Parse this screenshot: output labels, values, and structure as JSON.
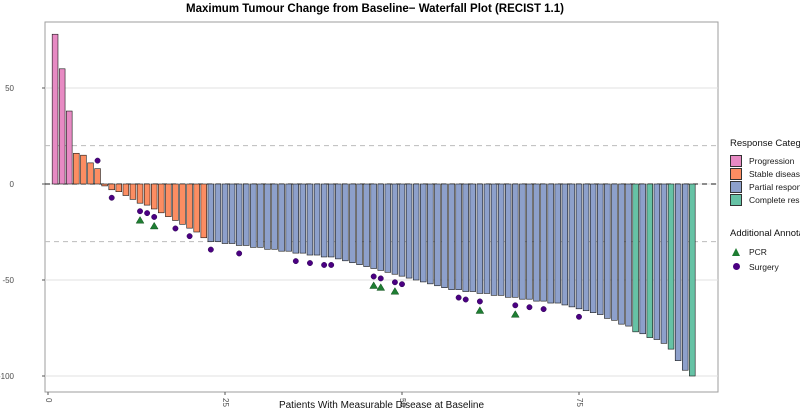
{
  "title": "Maximum Tumour Change from Baseline− Waterfall Plot (RECIST 1.1)",
  "x_axis": {
    "label": "Patients With Measurable Disease at Baseline"
  },
  "legend": {
    "response_title": "Response Category",
    "annotations_title": "Additional Annotations",
    "items": [
      {
        "key": "PD",
        "label": "Progression",
        "color": "#E78AC3"
      },
      {
        "key": "SD",
        "label": "Stable disease",
        "color": "#FC8D62"
      },
      {
        "key": "PR",
        "label": "Partial response",
        "color": "#8DA0CB"
      },
      {
        "key": "CR",
        "label": "Complete response",
        "color": "#66C2A5"
      }
    ],
    "annotation_items": [
      {
        "key": "pcr",
        "label": "PCR",
        "marker": "triangle",
        "color": "#1E7D32"
      },
      {
        "key": "surgery",
        "label": "Surgery",
        "marker": "dot",
        "color": "#4B0082"
      }
    ]
  },
  "chart_data": {
    "type": "bar",
    "title": "Maximum Tumour Change from Baseline− Waterfall Plot (RECIST 1.1)",
    "xlabel": "Patients With Measurable Disease at Baseline",
    "ylabel": "",
    "ylim": [
      -102,
      84
    ],
    "xlim": [
      0,
      94
    ],
    "xticks": [
      0,
      25,
      50,
      75
    ],
    "yticks": [
      50,
      0,
      -50,
      -100
    ],
    "grid": "horizontal-major",
    "legend_position": "right",
    "reference_lines": [
      {
        "y": 0,
        "style": "dashed",
        "color": "#1a1a1a"
      },
      {
        "y": 20,
        "style": "dashed",
        "color": "#bcbcbc"
      },
      {
        "y": -30,
        "style": "dashed",
        "color": "#bcbcbc"
      }
    ],
    "category_colors": {
      "PD": "#E78AC3",
      "SD": "#FC8D62",
      "PR": "#8DA0CB",
      "CR": "#66C2A5"
    },
    "marker_colors": {
      "pcr": "#1E7D32",
      "surgery": "#4B0082"
    },
    "patients": [
      {
        "v": 78,
        "c": "PD"
      },
      {
        "v": 60,
        "c": "PD"
      },
      {
        "v": 38,
        "c": "PD"
      },
      {
        "v": 16,
        "c": "SD"
      },
      {
        "v": 15,
        "c": "SD"
      },
      {
        "v": 11,
        "c": "SD"
      },
      {
        "v": 8,
        "c": "SD",
        "a": "s"
      },
      {
        "v": -1,
        "c": "SD"
      },
      {
        "v": -3,
        "c": "SD",
        "a": "s"
      },
      {
        "v": -4,
        "c": "SD"
      },
      {
        "v": -6,
        "c": "SD"
      },
      {
        "v": -8,
        "c": "SD"
      },
      {
        "v": -10,
        "c": "SD",
        "a": "sp"
      },
      {
        "v": -11,
        "c": "SD",
        "a": "s"
      },
      {
        "v": -13,
        "c": "SD",
        "a": "sp"
      },
      {
        "v": -15,
        "c": "SD"
      },
      {
        "v": -17,
        "c": "SD"
      },
      {
        "v": -19,
        "c": "SD",
        "a": "s"
      },
      {
        "v": -21,
        "c": "SD"
      },
      {
        "v": -23,
        "c": "SD",
        "a": "s"
      },
      {
        "v": -25,
        "c": "SD"
      },
      {
        "v": -28,
        "c": "SD"
      },
      {
        "v": -30,
        "c": "PR",
        "a": "s"
      },
      {
        "v": -30,
        "c": "PR"
      },
      {
        "v": -31,
        "c": "PR"
      },
      {
        "v": -31,
        "c": "PR"
      },
      {
        "v": -32,
        "c": "PR",
        "a": "s"
      },
      {
        "v": -32,
        "c": "PR"
      },
      {
        "v": -33,
        "c": "PR"
      },
      {
        "v": -33,
        "c": "PR"
      },
      {
        "v": -34,
        "c": "PR"
      },
      {
        "v": -34,
        "c": "PR"
      },
      {
        "v": -35,
        "c": "PR"
      },
      {
        "v": -35,
        "c": "PR"
      },
      {
        "v": -36,
        "c": "PR",
        "a": "s"
      },
      {
        "v": -36,
        "c": "PR"
      },
      {
        "v": -37,
        "c": "PR",
        "a": "s"
      },
      {
        "v": -37,
        "c": "PR"
      },
      {
        "v": -38,
        "c": "PR",
        "a": "s"
      },
      {
        "v": -38,
        "c": "PR",
        "a": "s"
      },
      {
        "v": -39,
        "c": "PR"
      },
      {
        "v": -40,
        "c": "PR"
      },
      {
        "v": -41,
        "c": "PR"
      },
      {
        "v": -42,
        "c": "PR"
      },
      {
        "v": -43,
        "c": "PR"
      },
      {
        "v": -44,
        "c": "PR",
        "a": "sp"
      },
      {
        "v": -45,
        "c": "PR",
        "a": "sp"
      },
      {
        "v": -46,
        "c": "PR"
      },
      {
        "v": -47,
        "c": "PR",
        "a": "sp"
      },
      {
        "v": -48,
        "c": "PR",
        "a": "s"
      },
      {
        "v": -49,
        "c": "PR"
      },
      {
        "v": -50,
        "c": "PR"
      },
      {
        "v": -51,
        "c": "PR"
      },
      {
        "v": -52,
        "c": "PR"
      },
      {
        "v": -53,
        "c": "PR"
      },
      {
        "v": -54,
        "c": "PR"
      },
      {
        "v": -55,
        "c": "PR"
      },
      {
        "v": -55,
        "c": "PR",
        "a": "s"
      },
      {
        "v": -56,
        "c": "PR",
        "a": "s"
      },
      {
        "v": -56,
        "c": "PR"
      },
      {
        "v": -57,
        "c": "PR",
        "a": "sp"
      },
      {
        "v": -57,
        "c": "PR"
      },
      {
        "v": -58,
        "c": "PR"
      },
      {
        "v": -58,
        "c": "PR"
      },
      {
        "v": -59,
        "c": "PR"
      },
      {
        "v": -59,
        "c": "PR",
        "a": "sp"
      },
      {
        "v": -60,
        "c": "PR"
      },
      {
        "v": -60,
        "c": "PR",
        "a": "s"
      },
      {
        "v": -61,
        "c": "PR"
      },
      {
        "v": -61,
        "c": "PR",
        "a": "s"
      },
      {
        "v": -62,
        "c": "PR"
      },
      {
        "v": -62,
        "c": "PR"
      },
      {
        "v": -63,
        "c": "PR"
      },
      {
        "v": -64,
        "c": "PR"
      },
      {
        "v": -65,
        "c": "PR",
        "a": "s"
      },
      {
        "v": -66,
        "c": "PR"
      },
      {
        "v": -67,
        "c": "PR"
      },
      {
        "v": -68,
        "c": "PR"
      },
      {
        "v": -70,
        "c": "PR"
      },
      {
        "v": -71,
        "c": "PR"
      },
      {
        "v": -73,
        "c": "PR"
      },
      {
        "v": -74,
        "c": "PR"
      },
      {
        "v": -77,
        "c": "CR"
      },
      {
        "v": -78,
        "c": "PR"
      },
      {
        "v": -80,
        "c": "CR"
      },
      {
        "v": -81,
        "c": "PR"
      },
      {
        "v": -83,
        "c": "PR"
      },
      {
        "v": -86,
        "c": "CR"
      },
      {
        "v": -92,
        "c": "PR"
      },
      {
        "v": -97,
        "c": "PR"
      },
      {
        "v": -100,
        "c": "CR"
      }
    ]
  }
}
